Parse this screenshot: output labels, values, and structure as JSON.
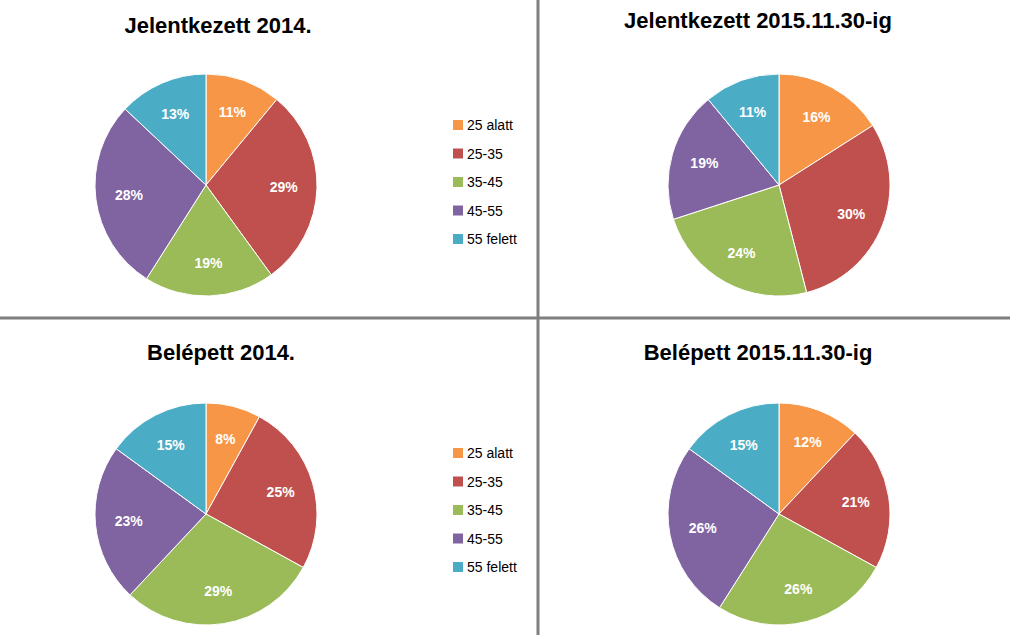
{
  "chart_data": [
    {
      "type": "pie",
      "title": "Jelentkezett 2014.",
      "categories": [
        "25 alatt",
        "25-35",
        "35-45",
        "45-55",
        "55 felett"
      ],
      "values": [
        11,
        29,
        19,
        28,
        13
      ],
      "value_labels": [
        "11%",
        "29%",
        "19%",
        "28%",
        "13%"
      ],
      "colors": [
        "#f79646",
        "#c0504d",
        "#9bbb59",
        "#8064a2",
        "#4bacc6"
      ],
      "data_labels": true,
      "legend": "right"
    },
    {
      "type": "pie",
      "title": "Jelentkezett 2015.11.30-ig",
      "categories": [
        "25 alatt",
        "25-35",
        "35-45",
        "45-55",
        "55 felett"
      ],
      "values": [
        16,
        30,
        24,
        19,
        11
      ],
      "value_labels": [
        "16%",
        "30%",
        "24%",
        "19%",
        "11%"
      ],
      "colors": [
        "#f79646",
        "#c0504d",
        "#9bbb59",
        "#8064a2",
        "#4bacc6"
      ],
      "data_labels": true
    },
    {
      "type": "pie",
      "title": "Belépett 2014.",
      "categories": [
        "25 alatt",
        "25-35",
        "35-45",
        "45-55",
        "55 felett"
      ],
      "values": [
        8,
        25,
        29,
        23,
        15
      ],
      "value_labels": [
        "8%",
        "25%",
        "29%",
        "23%",
        "15%"
      ],
      "colors": [
        "#f79646",
        "#c0504d",
        "#9bbb59",
        "#8064a2",
        "#4bacc6"
      ],
      "data_labels": true,
      "legend": "right"
    },
    {
      "type": "pie",
      "title": "Belépett 2015.11.30-ig",
      "categories": [
        "25 alatt",
        "25-35",
        "35-45",
        "45-55",
        "55 felett"
      ],
      "values": [
        12,
        21,
        26,
        26,
        15
      ],
      "value_labels": [
        "12%",
        "21%",
        "26%",
        "26%",
        "15%"
      ],
      "colors": [
        "#f79646",
        "#c0504d",
        "#9bbb59",
        "#8064a2",
        "#4bacc6"
      ],
      "data_labels": true
    }
  ]
}
